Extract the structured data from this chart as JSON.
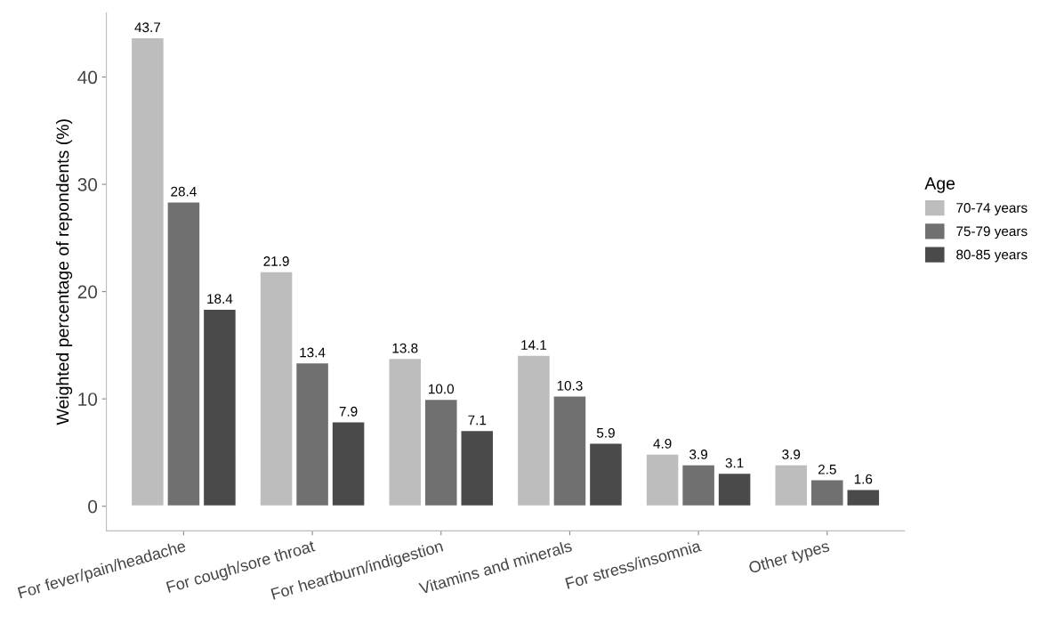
{
  "chart_data": {
    "type": "bar",
    "ylabel": "Weighted percentage of repondents (%)",
    "legend_title": "Age",
    "categories": [
      "For fever/pain/headache",
      "For cough/sore throat",
      "For heartburn/indigestion",
      "Vitamins and minerals",
      "For stress/insomnia",
      "Other types"
    ],
    "series": [
      {
        "name": "70-74 years",
        "color": "#bdbdbd",
        "values": [
          43.7,
          21.9,
          13.8,
          14.1,
          4.9,
          3.9
        ],
        "value_labels": [
          "43.7",
          "21.9",
          "13.8",
          "14.1",
          "4.9",
          "3.9"
        ]
      },
      {
        "name": "75-79 years",
        "color": "#707070",
        "values": [
          28.4,
          13.4,
          10.0,
          10.3,
          3.9,
          2.5
        ],
        "value_labels": [
          "28.4",
          "13.4",
          "10.0",
          "10.3",
          "3.9",
          "2.5"
        ]
      },
      {
        "name": "80-85 years",
        "color": "#4a4a4a",
        "values": [
          18.4,
          7.9,
          7.1,
          5.9,
          3.1,
          1.6
        ],
        "value_labels": [
          "18.4",
          "7.9",
          "7.1",
          "5.9",
          "3.1",
          "1.6"
        ]
      }
    ],
    "ylim": [
      -2.3,
      46
    ],
    "yticks": [
      0,
      10,
      20,
      30,
      40
    ],
    "legend": "right",
    "grid": false
  }
}
